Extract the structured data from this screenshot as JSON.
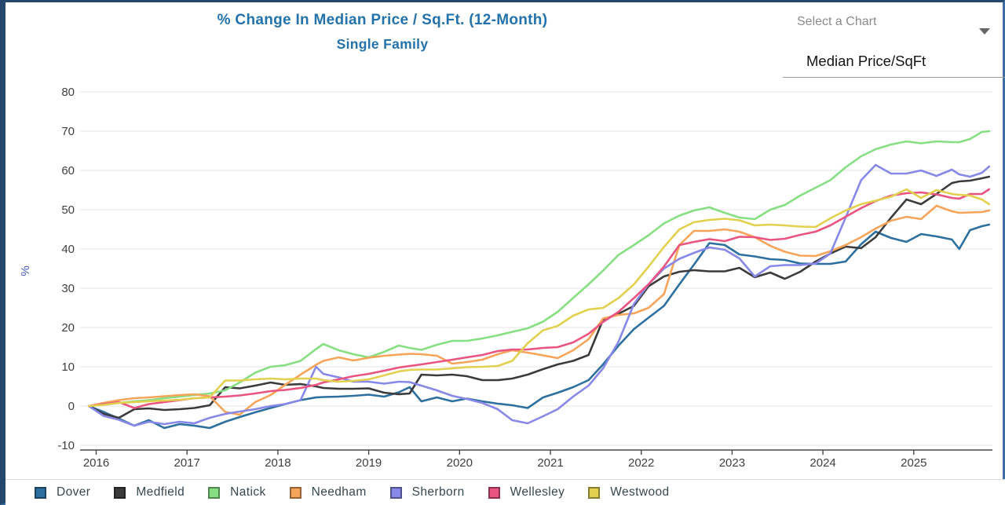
{
  "header": {
    "title": "% Change In Median Price / Sq.Ft. (12-Month)",
    "subtitle": "Single Family",
    "title_color": "#2472ab"
  },
  "chart_selector": {
    "label": "Select a Chart",
    "selected_value": "Median Price/SqFt"
  },
  "colors": {
    "accent_blue": "#2472ab",
    "page_border_left": "#24476b",
    "page_border_right": "#3c6ea5",
    "gridline": "#e6e6e6",
    "axis_line": "#4a4a4a",
    "tick_label": "#3f3f3f",
    "y_axis_title": "#4356c0"
  },
  "chart_data": {
    "type": "line",
    "title": "% Change In Median Price / Sq.Ft. (12-Month)",
    "subtitle": "Single Family",
    "xlabel": "",
    "ylabel": "%",
    "ylim": [
      -10,
      80
    ],
    "grid": true,
    "legend_position": "bottom",
    "yticks": [
      80,
      70,
      60,
      50,
      40,
      30,
      20,
      10,
      0,
      -10
    ],
    "xticks": [
      2016,
      2017,
      2018,
      2019,
      2020,
      2021,
      2022,
      2023,
      2024,
      2025
    ],
    "x": [
      2015.92,
      2016.08,
      2016.25,
      2016.42,
      2016.58,
      2016.75,
      2016.92,
      2017.08,
      2017.25,
      2017.42,
      2017.58,
      2017.75,
      2017.92,
      2018.08,
      2018.25,
      2018.42,
      2018.5,
      2018.67,
      2018.83,
      2019.0,
      2019.17,
      2019.33,
      2019.45,
      2019.58,
      2019.75,
      2019.92,
      2020.08,
      2020.25,
      2020.42,
      2020.58,
      2020.75,
      2020.92,
      2021.08,
      2021.25,
      2021.42,
      2021.58,
      2021.75,
      2021.92,
      2022.08,
      2022.25,
      2022.42,
      2022.58,
      2022.75,
      2022.92,
      2023.08,
      2023.25,
      2023.42,
      2023.58,
      2023.75,
      2023.92,
      2024.08,
      2024.25,
      2024.42,
      2024.58,
      2024.75,
      2024.92,
      2025.08,
      2025.25,
      2025.42,
      2025.5,
      2025.62,
      2025.75,
      2025.83
    ],
    "series": [
      {
        "name": "Dover",
        "color": "#2d6f9e",
        "values": [
          0,
          -1.5,
          -3.2,
          -5,
          -3.6,
          -5.6,
          -4.6,
          -5,
          -5.6,
          -4,
          -2.8,
          -1.6,
          -0.5,
          0.5,
          1.5,
          2.2,
          2.3,
          2.4,
          2.6,
          2.9,
          2.4,
          3.5,
          4.8,
          1.2,
          2.2,
          1.2,
          1.9,
          1.2,
          0.6,
          0.2,
          -0.5,
          2.2,
          3.4,
          4.8,
          6.6,
          10.6,
          15.4,
          19.6,
          22.5,
          25.5,
          31,
          36,
          41.5,
          41,
          38.6,
          38.1,
          37.4,
          37.2,
          36.3,
          36.2,
          36.2,
          36.8,
          41.2,
          44.4,
          42.8,
          41.8,
          43.8,
          43.2,
          42.4,
          40,
          44.8,
          45.8,
          46.2
        ]
      },
      {
        "name": "Medfield",
        "color": "#3b3b3b",
        "values": [
          0,
          -2,
          -3,
          -0.8,
          -0.6,
          -1,
          -0.8,
          -0.5,
          0.2,
          4.8,
          4.5,
          5.2,
          6,
          5.4,
          5.6,
          5,
          4.6,
          4.4,
          4.4,
          4.5,
          3.4,
          3,
          3.2,
          8,
          7.8,
          8,
          7.6,
          6.6,
          6.6,
          7,
          8,
          9.4,
          10.6,
          11.5,
          13,
          22,
          23.5,
          25.5,
          30.5,
          33,
          34.2,
          34.6,
          34.3,
          34.3,
          35.2,
          32.8,
          34,
          32.4,
          34.2,
          36.8,
          38.8,
          40.6,
          40.2,
          43,
          48,
          52.6,
          51.4,
          54,
          56.8,
          57.2,
          57.4,
          58,
          58.4
        ]
      },
      {
        "name": "Natick",
        "color": "#87de83",
        "values": [
          0,
          0.3,
          0.8,
          1.2,
          1.5,
          2,
          2.4,
          2.8,
          3.2,
          4,
          6,
          8.5,
          10,
          10.4,
          11.5,
          14.5,
          15.8,
          14.2,
          13.2,
          12.4,
          13.8,
          15.4,
          14.8,
          14.3,
          15.6,
          16.6,
          16.6,
          17.2,
          18,
          18.9,
          19.8,
          21.5,
          24,
          27.5,
          31,
          34.5,
          38.5,
          41,
          43.5,
          46.5,
          48.5,
          49.8,
          50.6,
          49.2,
          48,
          47.6,
          50,
          51.2,
          53.6,
          55.6,
          57.5,
          60.8,
          63.6,
          65.4,
          66.6,
          67.4,
          66.9,
          67.4,
          67.2,
          67.2,
          68,
          69.8,
          70
        ]
      },
      {
        "name": "Needham",
        "color": "#f7a45b",
        "values": [
          0,
          0.8,
          1.5,
          2,
          2.2,
          2.5,
          2.8,
          3,
          2.5,
          -1.5,
          -2.2,
          1,
          2.8,
          5.4,
          8,
          10.5,
          11.5,
          12.4,
          11.6,
          12.3,
          12.8,
          13.1,
          13.3,
          13.2,
          12.8,
          10.8,
          11.2,
          11.8,
          13.2,
          14.2,
          13.6,
          12.9,
          12.2,
          14.2,
          17,
          22.3,
          23.2,
          23.6,
          25,
          28.5,
          41,
          44.6,
          44.6,
          45,
          44.4,
          43,
          40.8,
          39.3,
          38.3,
          38.2,
          39.4,
          41,
          43,
          45.2,
          47.2,
          48.2,
          47.6,
          51,
          49.6,
          49.2,
          49.3,
          49.4,
          49.8
        ]
      },
      {
        "name": "Sherborn",
        "color": "#8788e8",
        "values": [
          0,
          -2.5,
          -3.5,
          -5,
          -4,
          -4.6,
          -4,
          -4.4,
          -3,
          -2,
          -1.4,
          -0.8,
          0,
          0.5,
          1.5,
          10,
          8.2,
          7.3,
          6.2,
          6.2,
          5.7,
          6.2,
          6.1,
          5.2,
          4,
          2.6,
          1.8,
          0.8,
          -0.8,
          -3.6,
          -4.4,
          -2.6,
          -0.8,
          2.4,
          5.2,
          9.6,
          16.4,
          26,
          31,
          35,
          37.5,
          39,
          40.4,
          39.8,
          37.6,
          33,
          35.6,
          35.9,
          35.9,
          36.3,
          38.8,
          48,
          57.5,
          61.4,
          59.2,
          59.2,
          60,
          58.6,
          60.2,
          59,
          58.4,
          59.4,
          61
        ]
      },
      {
        "name": "Wellesley",
        "color": "#ea5480",
        "values": [
          0,
          0.5,
          1,
          -0.5,
          0.5,
          1,
          1.5,
          2,
          2.2,
          2.4,
          2.7,
          3.2,
          3.8,
          4.1,
          4.6,
          5.4,
          6,
          6.8,
          7.6,
          8.2,
          9,
          9.8,
          10.2,
          10.6,
          11.2,
          11.8,
          12.4,
          13,
          14,
          14.4,
          14.4,
          14.8,
          15,
          16.2,
          18.4,
          21.4,
          24,
          27.5,
          31,
          35.5,
          41,
          41.8,
          42.5,
          42,
          43.1,
          43,
          42.3,
          42.6,
          43.6,
          44.4,
          46,
          48.2,
          50.4,
          52.2,
          53.6,
          54.2,
          54.4,
          53.9,
          53,
          52.8,
          54,
          54,
          55.2
        ]
      },
      {
        "name": "Westwood",
        "color": "#e2d04f",
        "values": [
          0,
          0.3,
          0.8,
          1,
          1.2,
          1.4,
          1.6,
          2,
          2.2,
          6.5,
          6.5,
          6.8,
          7,
          6.8,
          7,
          7,
          6.6,
          6.2,
          6.4,
          6.8,
          7.8,
          8.8,
          9.2,
          9.3,
          9.3,
          9.6,
          9.9,
          10,
          10.2,
          11.5,
          16,
          19.3,
          20.4,
          23,
          24.6,
          25,
          27.5,
          31,
          35.5,
          40.5,
          45,
          46.8,
          47.4,
          47.7,
          47.3,
          46,
          46.2,
          46,
          45.7,
          45.6,
          47.8,
          49.8,
          51.4,
          52.3,
          53.3,
          55.2,
          53,
          55,
          54,
          53.8,
          53.6,
          52.6,
          51.4
        ]
      }
    ]
  }
}
